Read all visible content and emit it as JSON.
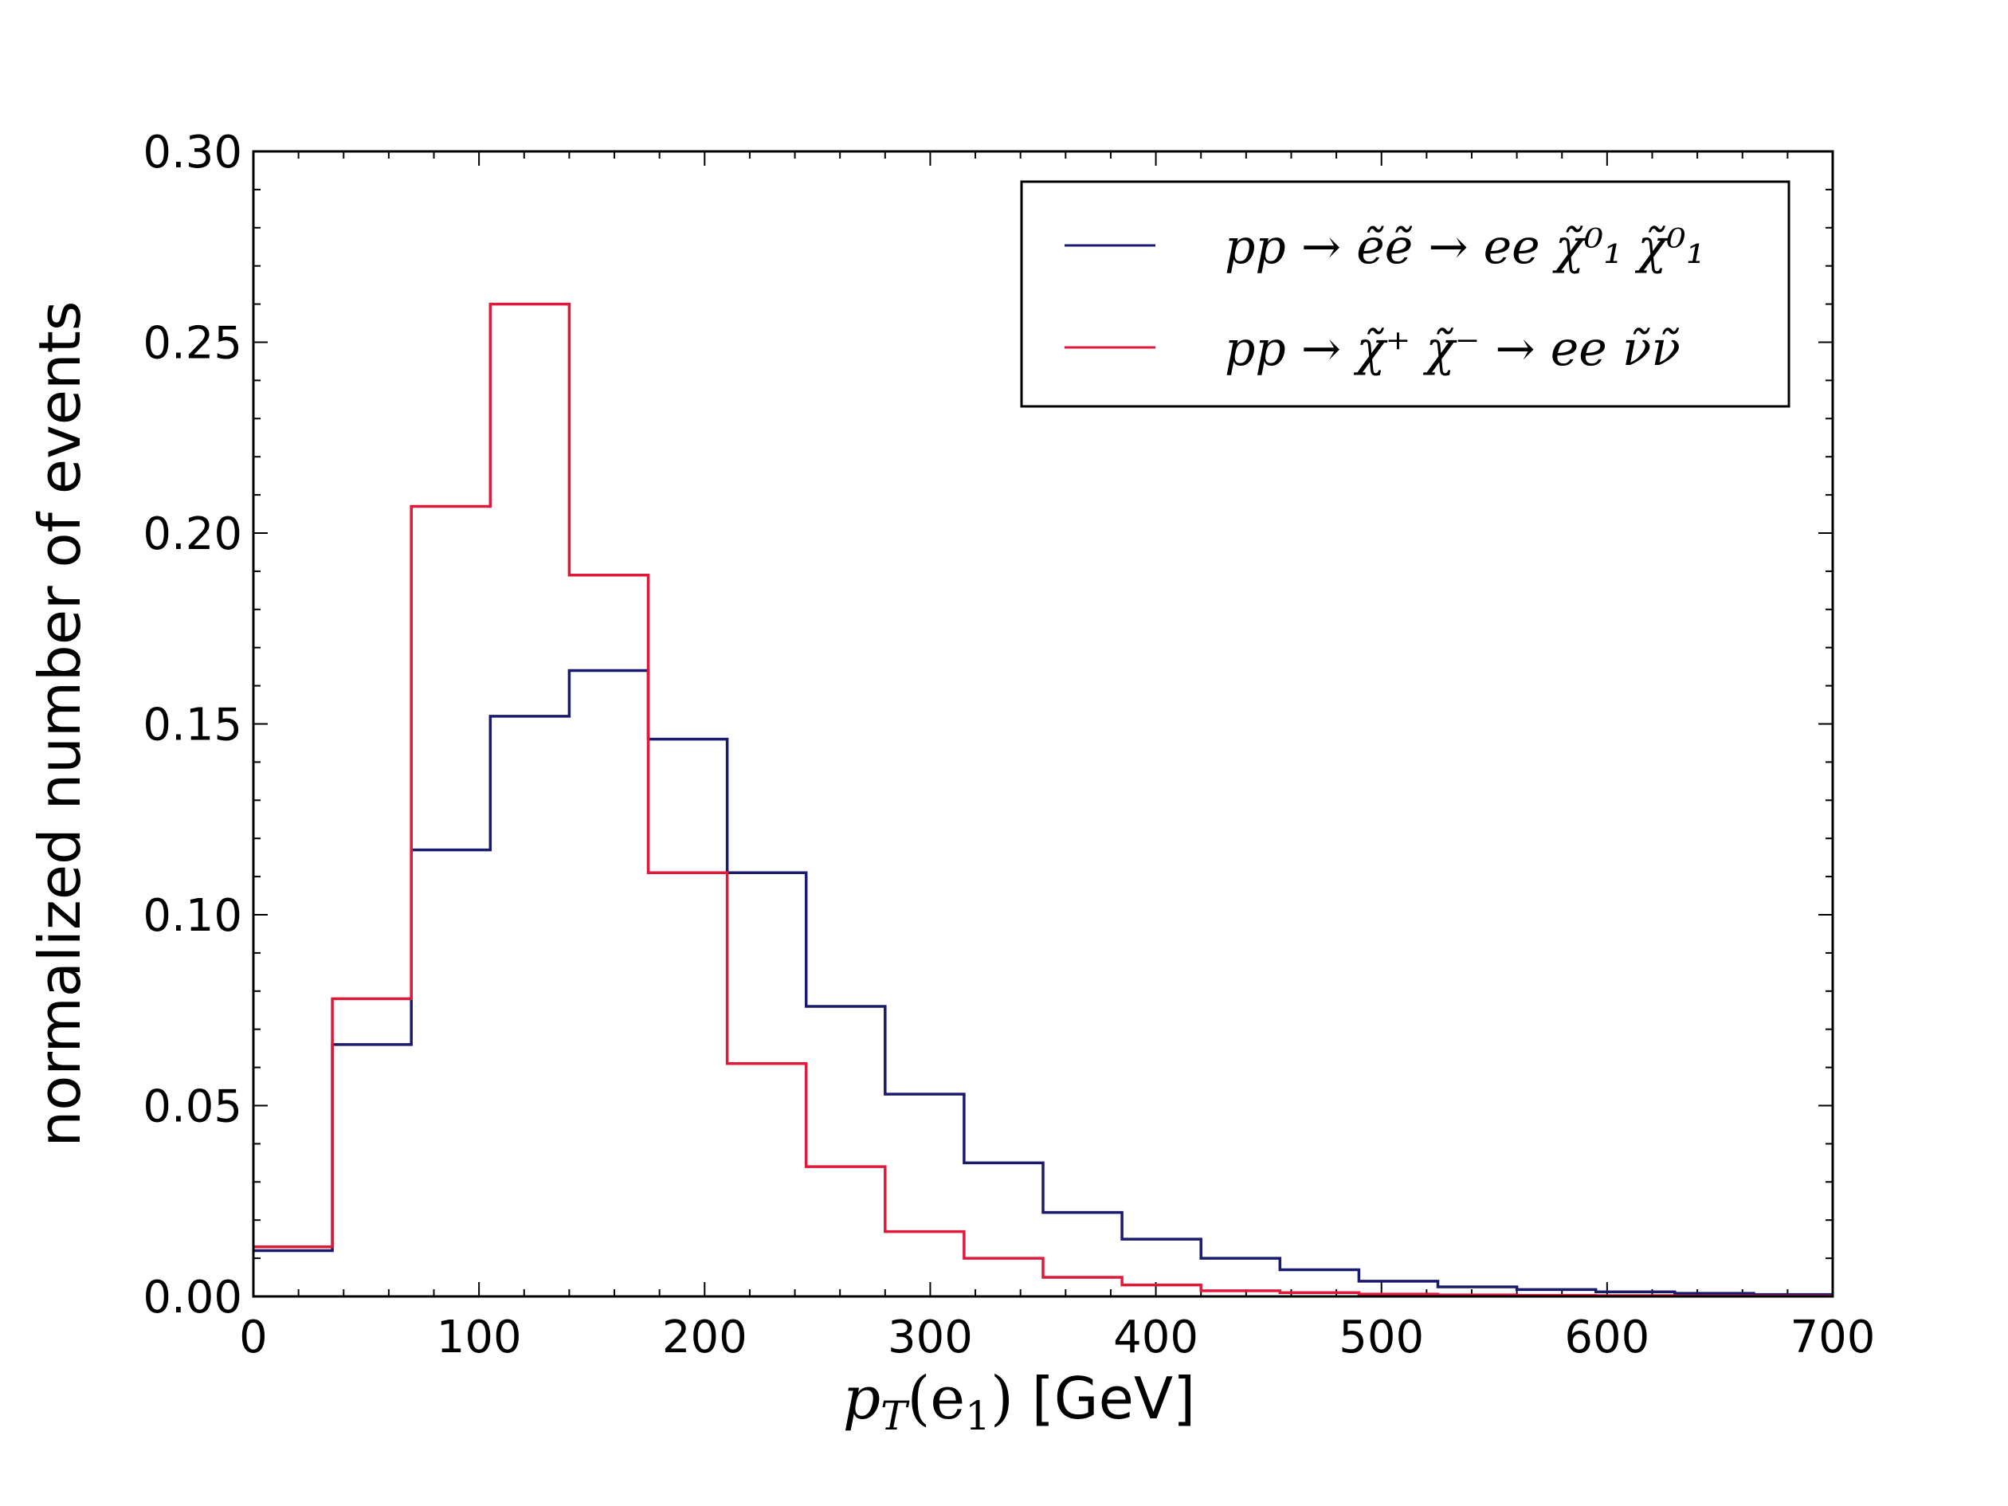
{
  "chart_data": {
    "type": "histogram",
    "title": "",
    "xlabel": {
      "math": "p",
      "sub": "T",
      "arg": "(e",
      "argsub": "1",
      "close": ")",
      "unit": " [GeV]"
    },
    "ylabel": "normalized number of events",
    "xlim": [
      0,
      700
    ],
    "ylim": [
      0,
      0.3
    ],
    "xticks": [
      "0",
      "100",
      "200",
      "300",
      "400",
      "500",
      "600",
      "700"
    ],
    "yticks": [
      "0.00",
      "0.05",
      "0.10",
      "0.15",
      "0.20",
      "0.25",
      "0.30"
    ],
    "bin_edges": [
      0,
      35,
      70,
      105,
      140,
      175,
      210,
      245,
      280,
      315,
      350,
      385,
      420,
      455,
      490,
      525,
      560,
      595,
      630,
      665,
      700
    ],
    "series": [
      {
        "name": "pp → ẽẽ → ee χ̃⁰₁ χ̃⁰₁",
        "color": "#1a1a6e",
        "values": [
          0.012,
          0.066,
          0.117,
          0.152,
          0.164,
          0.146,
          0.111,
          0.076,
          0.053,
          0.035,
          0.022,
          0.015,
          0.01,
          0.007,
          0.004,
          0.0025,
          0.0018,
          0.0012,
          0.0008,
          0.0005
        ]
      },
      {
        "name": "pp → χ̃⁺ χ̃⁻ → ee ν̃ν̃",
        "color": "#e0193a",
        "values": [
          0.013,
          0.078,
          0.207,
          0.26,
          0.189,
          0.111,
          0.061,
          0.034,
          0.017,
          0.01,
          0.005,
          0.003,
          0.0015,
          0.001,
          0.0006,
          0.0004,
          0.0003,
          0.0002,
          0.0001,
          0.0001
        ]
      }
    ],
    "legend": {
      "position": "top-right"
    }
  }
}
